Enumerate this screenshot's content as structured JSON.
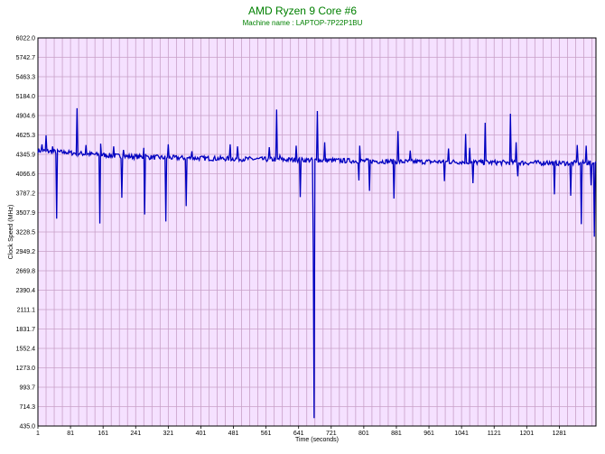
{
  "chart_data": {
    "type": "line",
    "title": "AMD Ryzen 9 Core #6",
    "subtitle": "Machine name : LAPTOP-7P22P1BU",
    "xlabel": "Time (seconds)",
    "ylabel": "Clock Speed (MHz)",
    "xlim": [
      1,
      1371
    ],
    "ylim": [
      435.0,
      6022.0
    ],
    "x_ticks": [
      1,
      81,
      161,
      241,
      321,
      401,
      481,
      561,
      641,
      721,
      801,
      881,
      961,
      1041,
      1121,
      1201,
      1281
    ],
    "y_ticks": [
      "435.0",
      "714.3",
      "993.7",
      "1273.0",
      "1552.4",
      "1831.7",
      "2111.1",
      "2390.4",
      "2669.8",
      "2949.2",
      "3228.5",
      "3507.9",
      "3787.2",
      "4066.6",
      "4345.9",
      "4625.3",
      "4904.6",
      "5184.0",
      "5463.3",
      "5742.7",
      "6022.0"
    ],
    "grid": true,
    "background_color": "#f5e1ff",
    "grid_color": "#c8a0c8",
    "line_color": "#0000c0",
    "title_color": "#008000",
    "series": [
      {
        "baseline": [
          [
            1,
            4400
          ],
          [
            50,
            4380
          ],
          [
            100,
            4360
          ],
          [
            200,
            4320
          ],
          [
            300,
            4300
          ],
          [
            400,
            4290
          ],
          [
            500,
            4280
          ],
          [
            600,
            4270
          ],
          [
            700,
            4260
          ],
          [
            800,
            4250
          ],
          [
            900,
            4240
          ],
          [
            1000,
            4240
          ],
          [
            1100,
            4230
          ],
          [
            1200,
            4225
          ],
          [
            1300,
            4220
          ],
          [
            1371,
            4220
          ]
        ],
        "spikes": [
          [
            12,
            4490
          ],
          [
            22,
            4620
          ],
          [
            37,
            4460
          ],
          [
            48,
            3420
          ],
          [
            70,
            4380
          ],
          [
            97,
            5010
          ],
          [
            98,
            4820
          ],
          [
            120,
            4480
          ],
          [
            154,
            3350
          ],
          [
            155,
            4500
          ],
          [
            188,
            4460
          ],
          [
            208,
            3720
          ],
          [
            212,
            4410
          ],
          [
            261,
            4440
          ],
          [
            263,
            3480
          ],
          [
            266,
            4350
          ],
          [
            316,
            3380
          ],
          [
            322,
            4490
          ],
          [
            366,
            3600
          ],
          [
            380,
            4390
          ],
          [
            474,
            4490
          ],
          [
            492,
            4460
          ],
          [
            570,
            4450
          ],
          [
            587,
            4990
          ],
          [
            596,
            4330
          ],
          [
            636,
            4470
          ],
          [
            645,
            3730
          ],
          [
            677,
            2960
          ],
          [
            680,
            549
          ],
          [
            688,
            4970
          ],
          [
            706,
            4520
          ],
          [
            789,
            3970
          ],
          [
            791,
            4470
          ],
          [
            815,
            3820
          ],
          [
            876,
            3710
          ],
          [
            885,
            4680
          ],
          [
            915,
            4400
          ],
          [
            1000,
            3960
          ],
          [
            1010,
            4430
          ],
          [
            1052,
            4640
          ],
          [
            1061,
            4440
          ],
          [
            1069,
            3930
          ],
          [
            1100,
            4800
          ],
          [
            1161,
            4930
          ],
          [
            1175,
            4520
          ],
          [
            1180,
            4030
          ],
          [
            1251,
            4250
          ],
          [
            1270,
            3770
          ],
          [
            1310,
            3750
          ],
          [
            1325,
            4480
          ],
          [
            1336,
            3340
          ],
          [
            1347,
            4470
          ],
          [
            1360,
            3900
          ],
          [
            1367,
            3160
          ]
        ]
      }
    ]
  }
}
